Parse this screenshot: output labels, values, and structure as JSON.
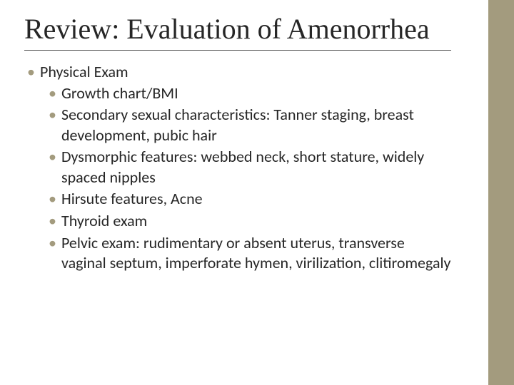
{
  "slide": {
    "title": "Review: Evaluation of Amenorrhea",
    "accent_color": "#a39b7e",
    "background_color": "#ffffff",
    "text_color": "#262626",
    "title_fontsize": 40,
    "body_fontsize": 22,
    "level1": {
      "text": "Physical Exam"
    },
    "level2": [
      {
        "text": "Growth chart/BMI"
      },
      {
        "text": "Secondary sexual characteristics: Tanner staging, breast development, pubic hair"
      },
      {
        "text": "Dysmorphic features: webbed neck, short stature, widely spaced nipples"
      },
      {
        "text": "Hirsute features, Acne"
      },
      {
        "text": "Thyroid exam"
      },
      {
        "text": "Pelvic exam: rudimentary or absent uterus,  transverse vaginal septum, imperforate hymen, virilization, clitiromegaly"
      }
    ]
  }
}
